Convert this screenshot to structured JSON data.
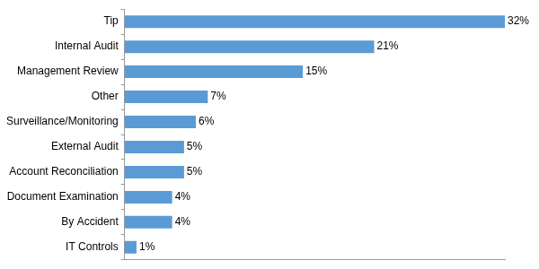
{
  "chart_data": {
    "type": "bar",
    "orientation": "horizontal",
    "categories": [
      "Tip",
      "Internal Audit",
      "Management Review",
      "Other",
      "Surveillance/Monitoring",
      "External Audit",
      "Account Reconciliation",
      "Document Examination",
      "By Accident",
      "IT Controls"
    ],
    "values": [
      32,
      21,
      15,
      7,
      6,
      5,
      5,
      4,
      4,
      1
    ],
    "value_labels": [
      "32%",
      "21%",
      "15%",
      "7%",
      "6%",
      "5%",
      "5%",
      "4%",
      "4%",
      "1%"
    ],
    "color": "#5b9bd5",
    "xlim": [
      0,
      32
    ],
    "grid": false,
    "data_labels": true,
    "tick_labels": "y"
  }
}
